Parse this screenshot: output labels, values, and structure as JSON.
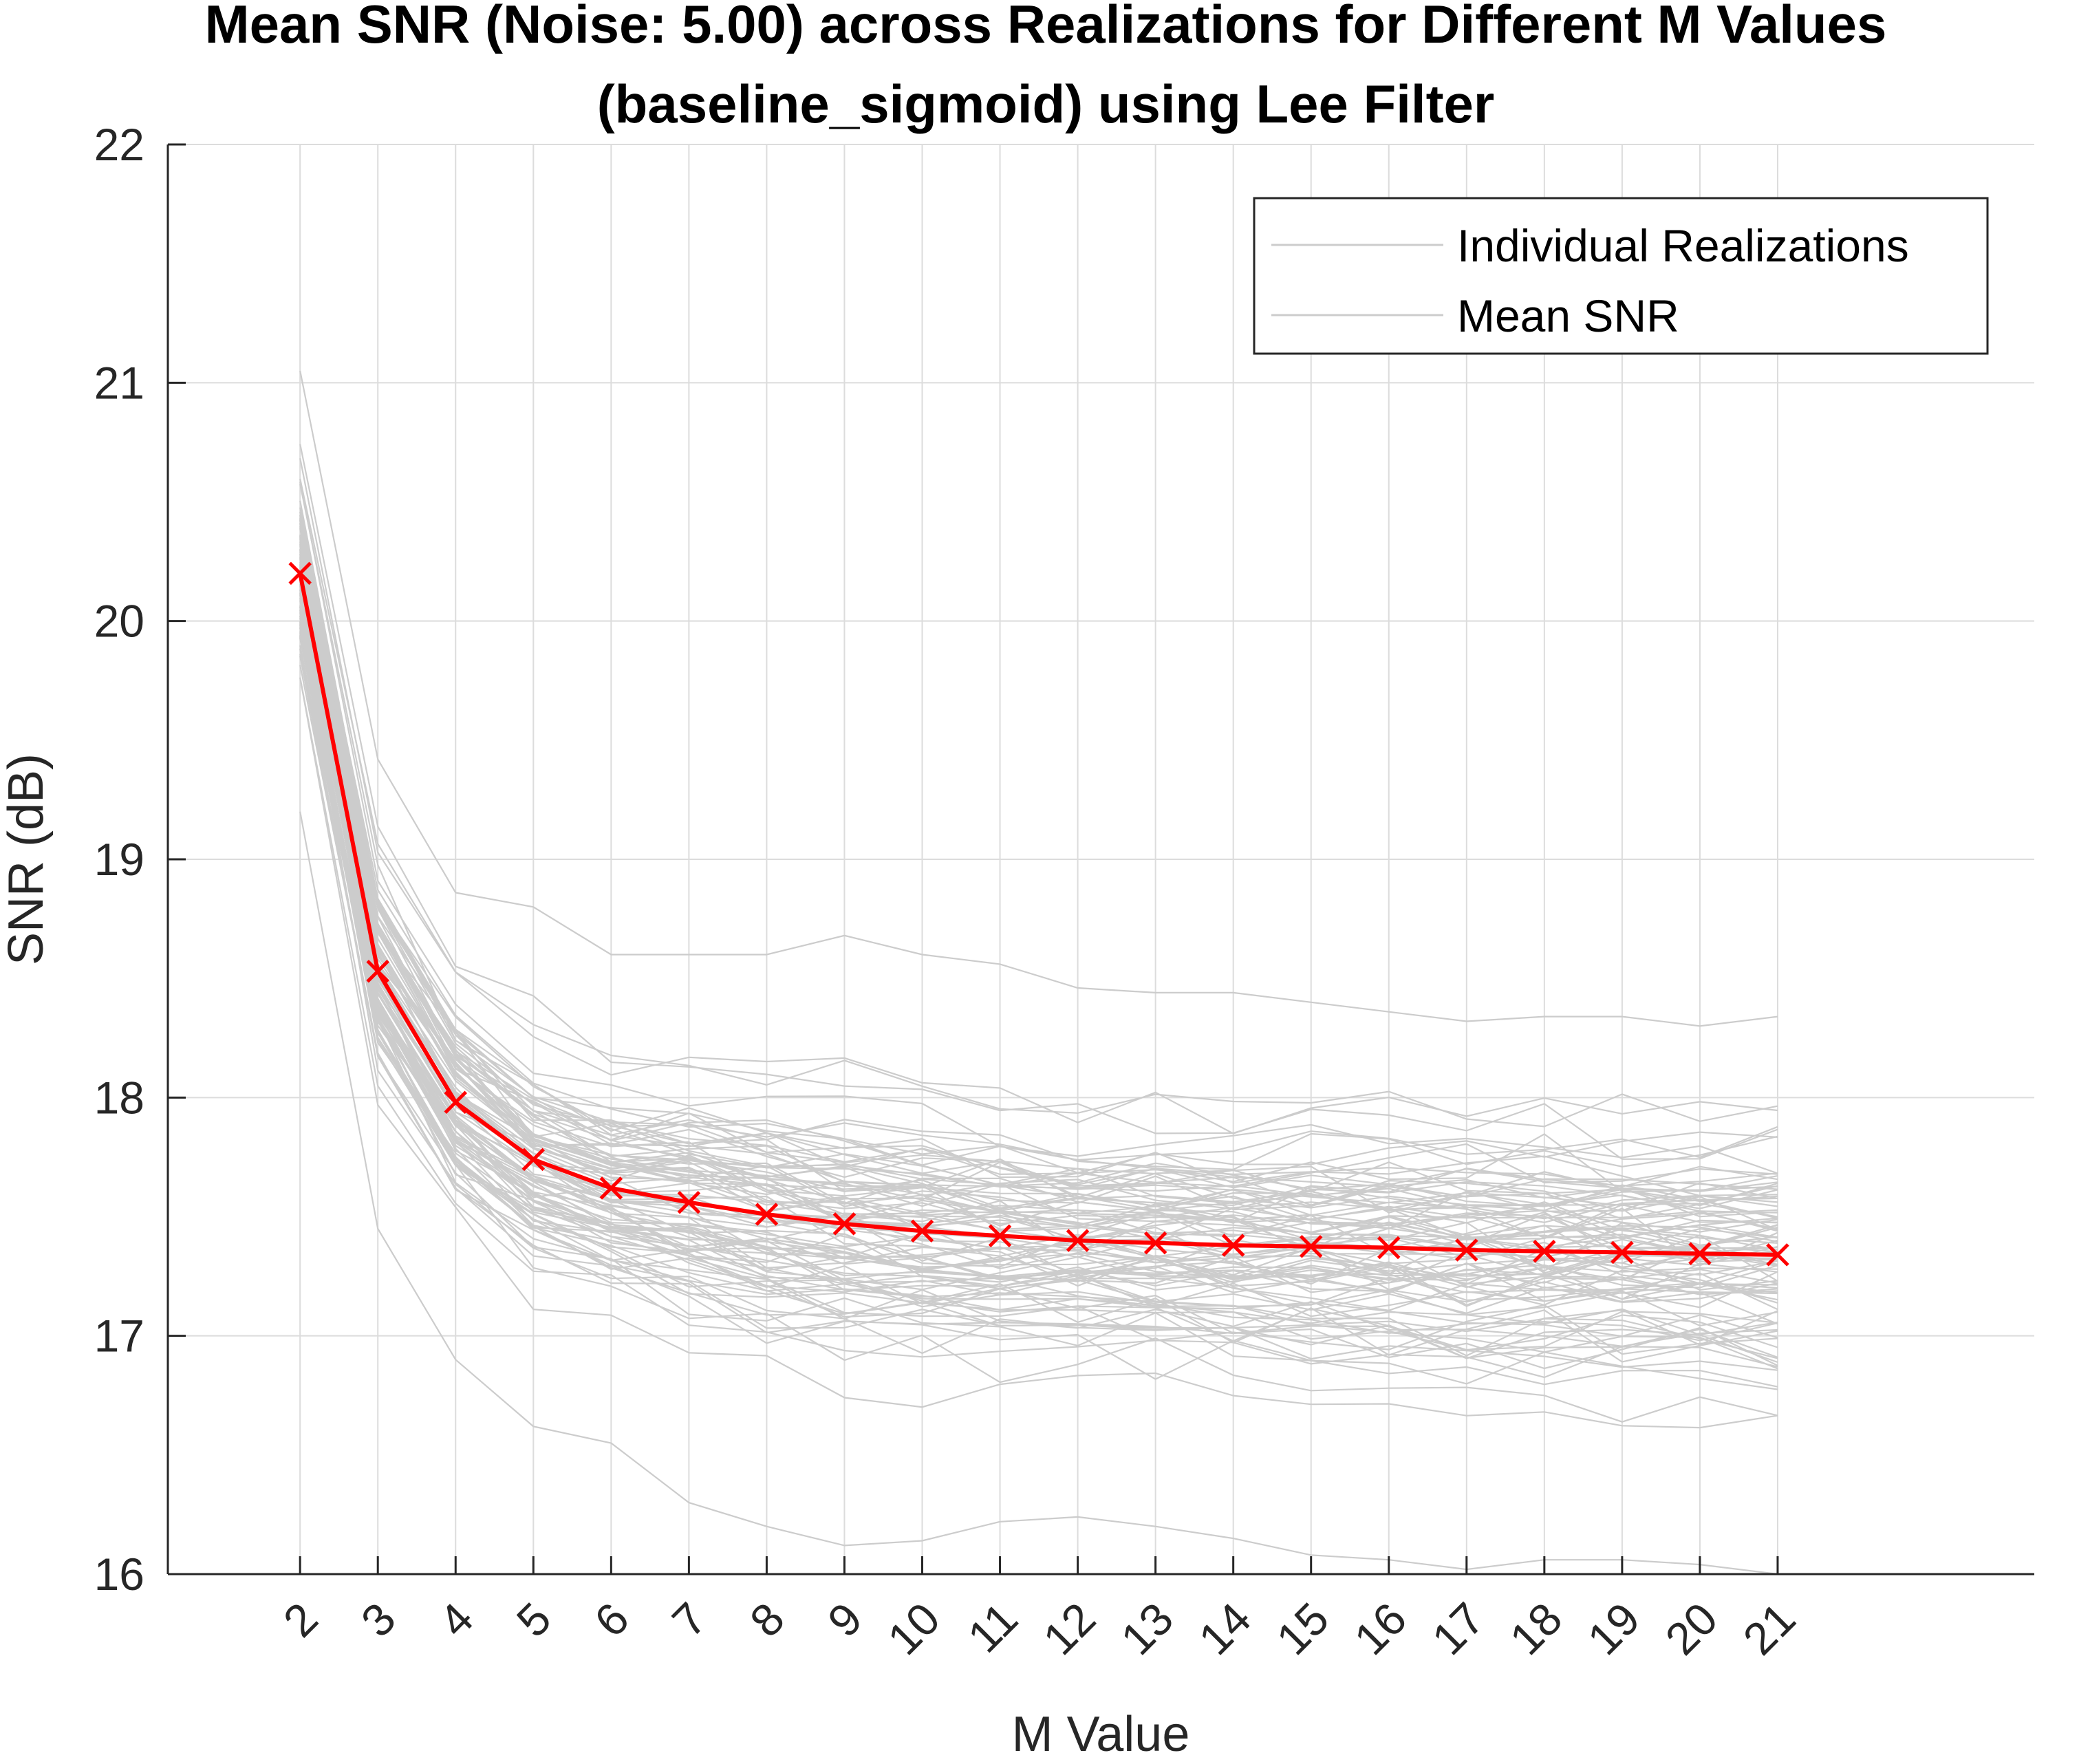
{
  "chart_data": {
    "type": "line",
    "title": "Mean SNR (Noise: 5.00) across Realizations for Different M Values",
    "subtitle": "(baseline_sigmoid) using Lee Filter",
    "xlabel": "M Value",
    "ylabel": "SNR (dB)",
    "ylim": [
      16,
      22
    ],
    "xlim": [
      0.3,
      24.3
    ],
    "grid": true,
    "legend_position": "top-right",
    "x": [
      2,
      3,
      4,
      5,
      6,
      7,
      8,
      9,
      10,
      11,
      12,
      13,
      14,
      15,
      16,
      17,
      18,
      19,
      20,
      21
    ],
    "x_tick_labels": [
      "2",
      "3",
      "4",
      "5",
      "6",
      "7",
      "8",
      "9",
      "10",
      "11",
      "12",
      "13",
      "14",
      "15",
      "16",
      "17",
      "18",
      "19",
      "20",
      "21"
    ],
    "y_ticks": [
      16,
      17,
      18,
      19,
      20,
      21,
      22
    ],
    "y_tick_labels": [
      "16",
      "17",
      "18",
      "19",
      "20",
      "21",
      "22"
    ],
    "legend": [
      "Individual Realizations",
      "Mean SNR"
    ],
    "series": [
      {
        "name": "Mean SNR",
        "color": "#ff0000",
        "marker": "x",
        "values": [
          20.2,
          18.53,
          17.98,
          17.74,
          17.62,
          17.56,
          17.51,
          17.47,
          17.44,
          17.42,
          17.4,
          17.39,
          17.38,
          17.375,
          17.37,
          17.36,
          17.355,
          17.35,
          17.345,
          17.34
        ]
      }
    ],
    "realizations": {
      "name": "Individual Realizations",
      "color": "#cccccc",
      "count": 100,
      "envelope_min": [
        19.2,
        17.45,
        16.9,
        16.62,
        16.55,
        16.3,
        16.2,
        16.12,
        16.14,
        16.22,
        16.24,
        16.2,
        16.15,
        16.08,
        16.06,
        16.02,
        16.06,
        16.06,
        16.04,
        16.0
      ],
      "envelope_max": [
        21.05,
        19.42,
        18.86,
        18.8,
        18.6,
        18.6,
        18.6,
        18.68,
        18.6,
        18.56,
        18.46,
        18.44,
        18.44,
        18.4,
        18.36,
        18.32,
        18.34,
        18.34,
        18.3,
        18.34
      ]
    }
  }
}
